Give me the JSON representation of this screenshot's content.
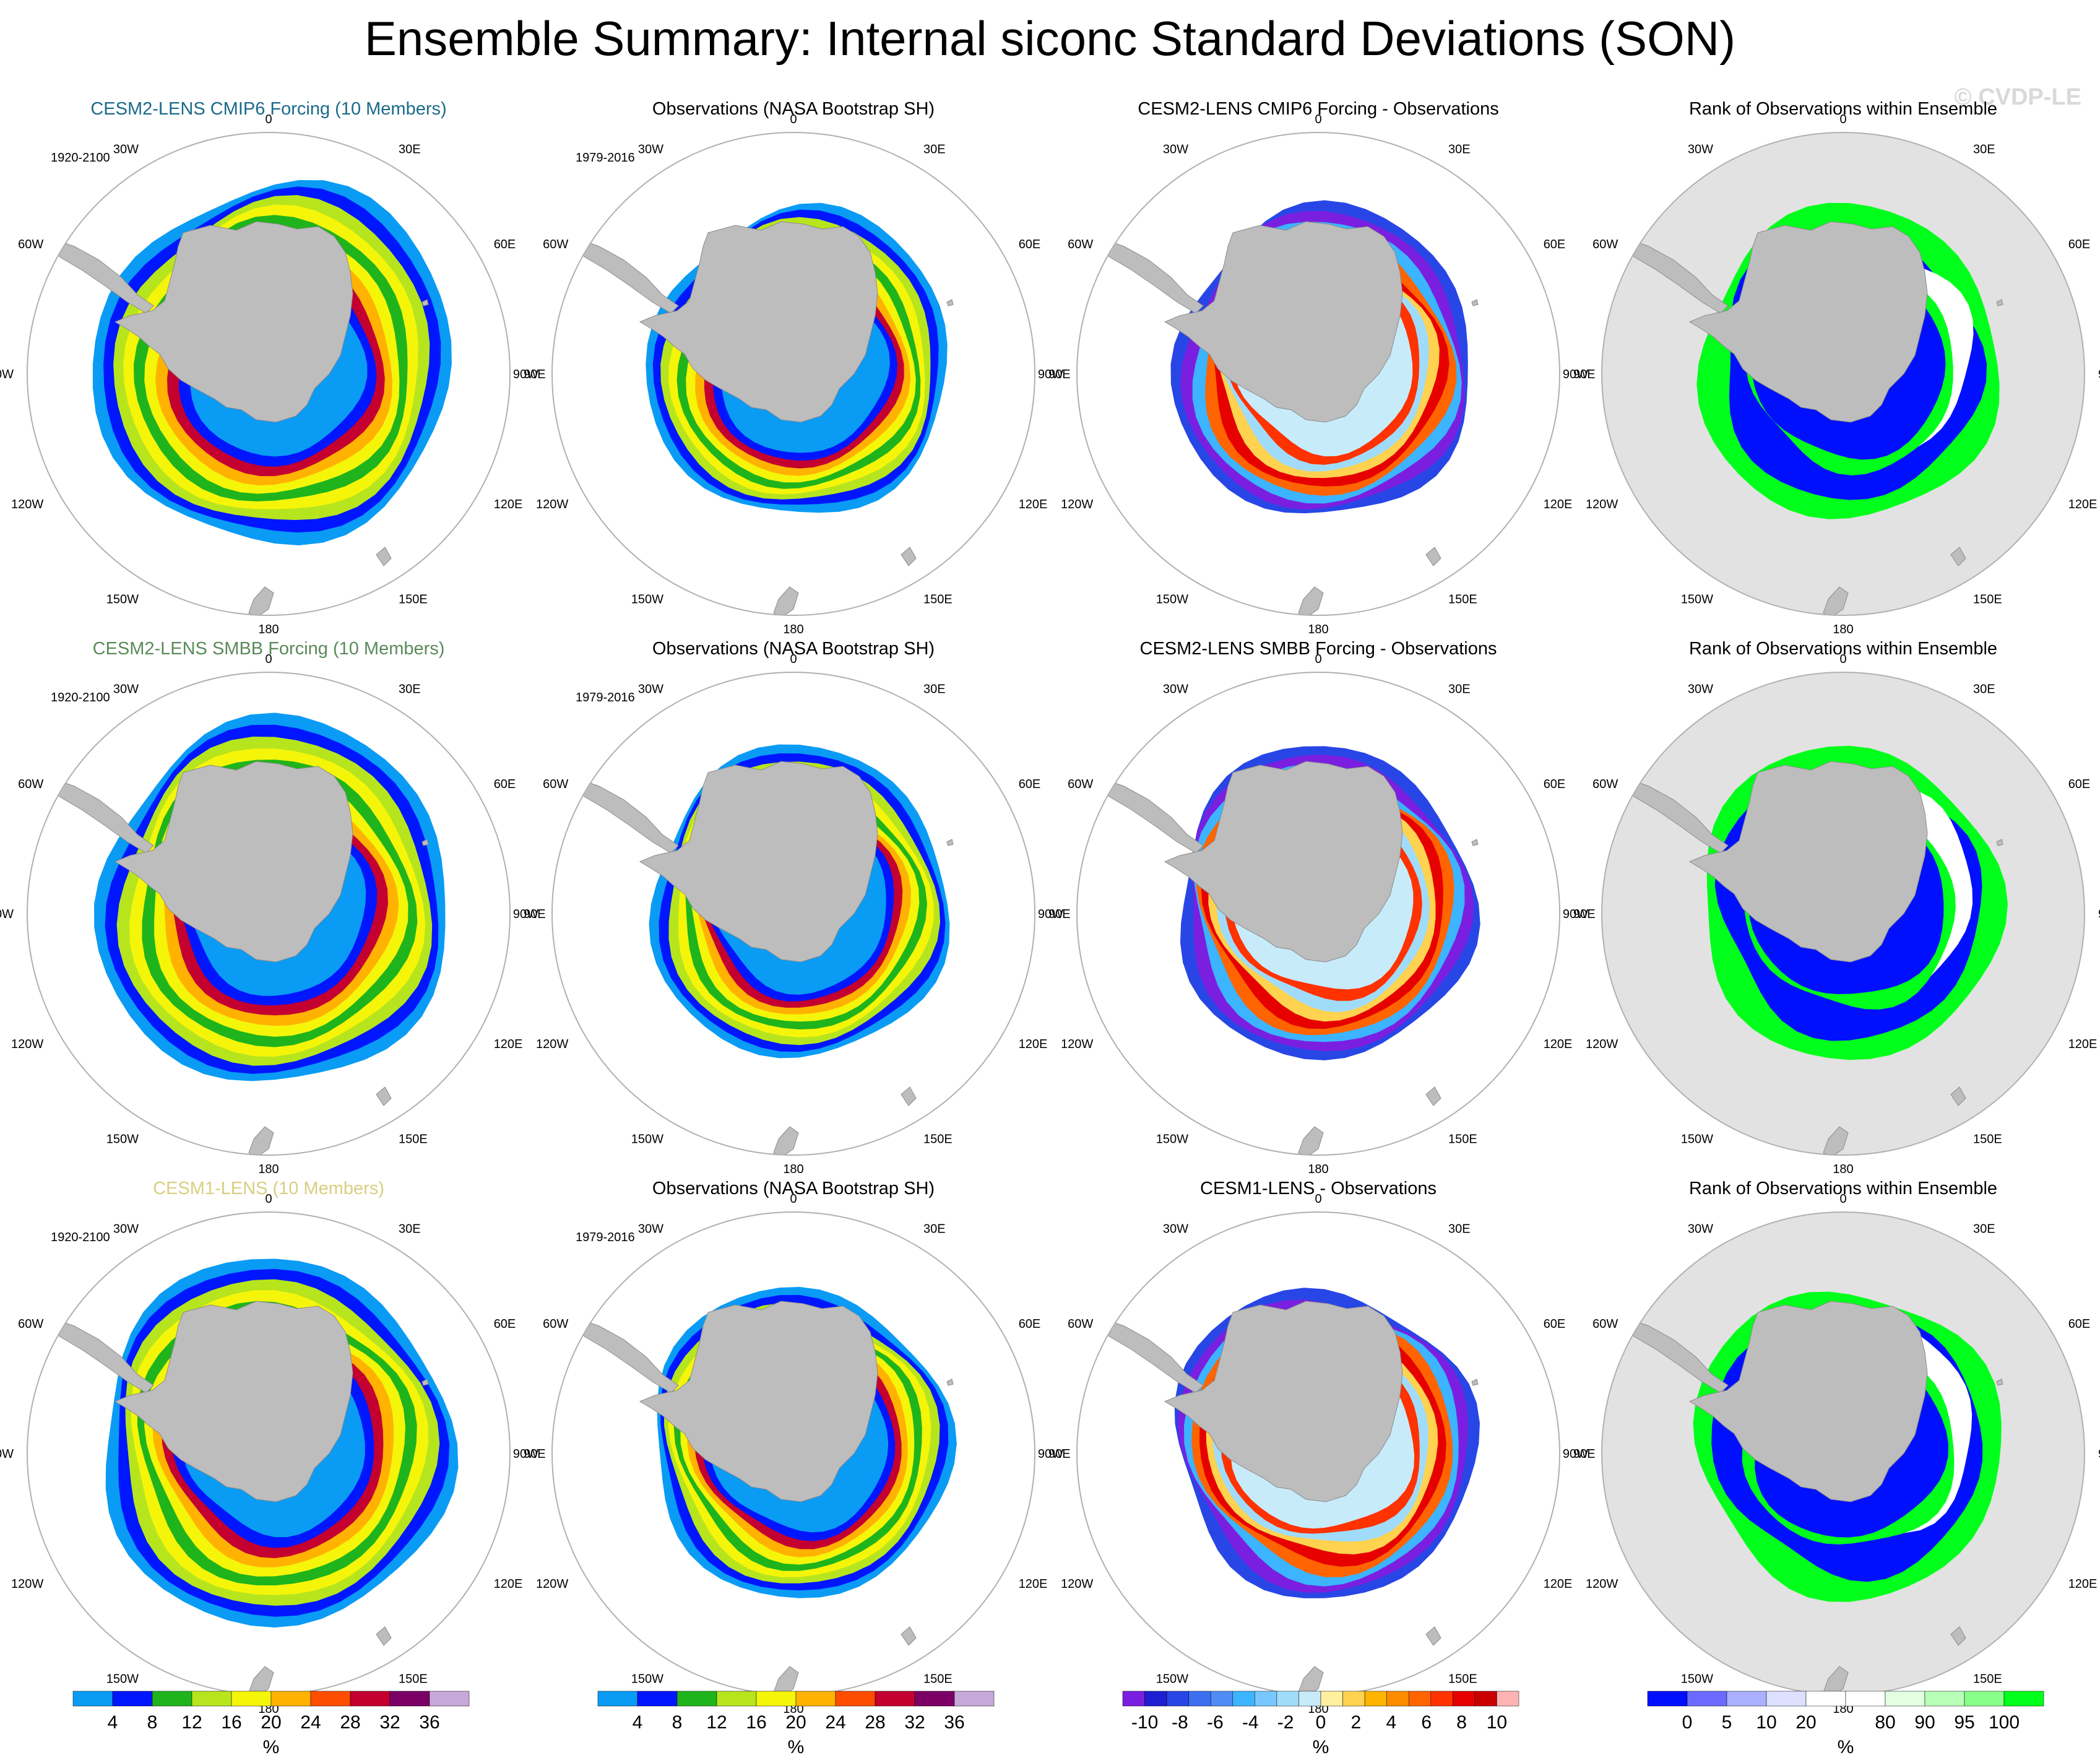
{
  "title": "Ensemble Summary: Internal siconc Standard Deviations (SON)",
  "watermark": "© CVDP-LE",
  "longitude_labels": [
    "0",
    "30E",
    "60E",
    "90E",
    "120E",
    "150E",
    "180",
    "150W",
    "120W",
    "90W",
    "60W",
    "30W"
  ],
  "colors": {
    "land": "#bdbdbd",
    "ocean_blank": "#ffffff",
    "ocean_rank": "#e2e2e2",
    "rank_low": "#0010ff",
    "rank_high": "#00ff1a"
  },
  "rows": [
    {
      "panels": [
        {
          "title": "CESM2-LENS CMIP6 Forcing (10 Members)",
          "title_color": "#1a6a8a",
          "range": "1920-2100",
          "kind": "std"
        },
        {
          "title": "Observations (NASA Bootstrap SH)",
          "title_color": "#000000",
          "range": "1979-2016",
          "kind": "std_obs"
        },
        {
          "title": "CESM2-LENS CMIP6 Forcing - Observations",
          "title_color": "#000000",
          "range": "",
          "kind": "diff"
        },
        {
          "title": "Rank of Observations within Ensemble",
          "title_color": "#000000",
          "range": "",
          "kind": "rank"
        }
      ]
    },
    {
      "panels": [
        {
          "title": "CESM2-LENS SMBB Forcing (10 Members)",
          "title_color": "#5b8a5b",
          "range": "1920-2100",
          "kind": "std"
        },
        {
          "title": "Observations (NASA Bootstrap SH)",
          "title_color": "#000000",
          "range": "1979-2016",
          "kind": "std_obs"
        },
        {
          "title": "CESM2-LENS SMBB Forcing - Observations",
          "title_color": "#000000",
          "range": "",
          "kind": "diff"
        },
        {
          "title": "Rank of Observations within Ensemble",
          "title_color": "#000000",
          "range": "",
          "kind": "rank"
        }
      ]
    },
    {
      "panels": [
        {
          "title": "CESM1-LENS (10 Members)",
          "title_color": "#d8cf80",
          "range": "1920-2100",
          "kind": "std"
        },
        {
          "title": "Observations (NASA Bootstrap SH)",
          "title_color": "#000000",
          "range": "1979-2016",
          "kind": "std_obs"
        },
        {
          "title": "CESM1-LENS - Observations",
          "title_color": "#000000",
          "range": "",
          "kind": "diff"
        },
        {
          "title": "Rank of Observations within Ensemble",
          "title_color": "#000000",
          "range": "",
          "kind": "rank"
        }
      ]
    }
  ],
  "colorbars": [
    {
      "name": "std-colorbar-model",
      "units": "%",
      "colors": [
        "#0a9bf5",
        "#0016ff",
        "#1fb41c",
        "#b7e51d",
        "#f5f50a",
        "#ffb200",
        "#ff4d00",
        "#c40030",
        "#7a0066",
        "#c8a8d8"
      ],
      "labels": [
        "4",
        "8",
        "12",
        "16",
        "20",
        "24",
        "28",
        "32",
        "36"
      ]
    },
    {
      "name": "std-colorbar-obs",
      "units": "%",
      "colors": [
        "#0a9bf5",
        "#0016ff",
        "#1fb41c",
        "#b7e51d",
        "#f5f50a",
        "#ffb200",
        "#ff4d00",
        "#c40030",
        "#7a0066",
        "#c8a8d8"
      ],
      "labels": [
        "4",
        "8",
        "12",
        "16",
        "20",
        "24",
        "28",
        "32",
        "36"
      ]
    },
    {
      "name": "diff-colorbar",
      "units": "%",
      "colors": [
        "#7a1fe0",
        "#1e1ed2",
        "#2846e6",
        "#3c6ef0",
        "#508cf5",
        "#3cb4ff",
        "#78c8ff",
        "#a0dcfa",
        "#c8ebfa",
        "#fff0a0",
        "#ffd250",
        "#ffb400",
        "#ff8c00",
        "#ff6400",
        "#ff3200",
        "#e60000",
        "#c80000",
        "#ffb4b4"
      ],
      "labels": [
        "-10",
        "-8",
        "-6",
        "-4",
        "-2",
        "0",
        "2",
        "4",
        "6",
        "8",
        "10"
      ]
    },
    {
      "name": "rank-colorbar",
      "units": "%",
      "colors": [
        "#0010ff",
        "#6a6aff",
        "#aab0ff",
        "#dde0ff",
        "#ffffff",
        "#ffffff",
        "#e2ffe2",
        "#b7ffb7",
        "#88ff88",
        "#00ff1a"
      ],
      "labels": [
        "0",
        "5",
        "10",
        "20",
        "80",
        "90",
        "95",
        "100"
      ]
    }
  ]
}
